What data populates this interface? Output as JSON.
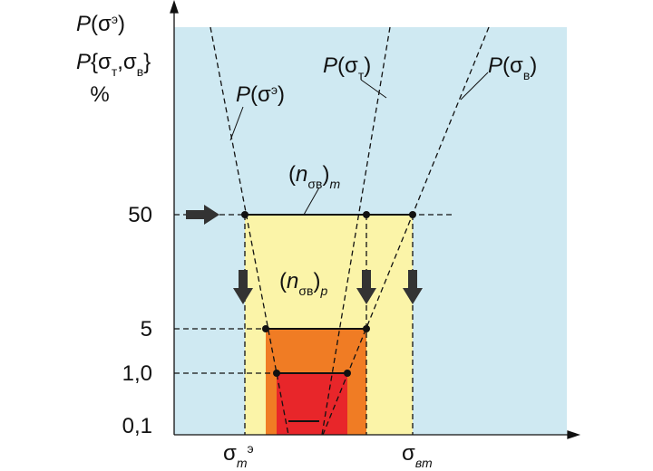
{
  "axis_titles": [
    {
      "parts": [
        {
          "text": "P",
          "style": "italic"
        },
        {
          "text": "(σ",
          "style": "normal"
        },
        {
          "text": "э",
          "style": "super"
        },
        {
          "text": ")",
          "style": "normal"
        }
      ]
    },
    {
      "parts": [
        {
          "text": "P",
          "style": "italic"
        },
        {
          "text": "{σ",
          "style": "normal"
        },
        {
          "text": "т",
          "style": "sub"
        },
        {
          "text": ",σ",
          "style": "normal"
        },
        {
          "text": "в",
          "style": "sub"
        },
        {
          "text": "}",
          "style": "normal"
        }
      ]
    },
    {
      "parts": [
        {
          "text": "%",
          "style": "normal"
        }
      ]
    }
  ],
  "y_levels": [
    "50",
    "5",
    "1,0",
    "0,1"
  ],
  "curve_labels": [
    {
      "parts": [
        {
          "text": "P",
          "style": "italic"
        },
        {
          "text": "(σ",
          "style": "normal"
        },
        {
          "text": "э",
          "style": "super"
        },
        {
          "text": ")",
          "style": "normal"
        }
      ]
    },
    {
      "parts": [
        {
          "text": "P",
          "style": "italic"
        },
        {
          "text": "(σ",
          "style": "normal"
        },
        {
          "text": "т",
          "style": "sub"
        },
        {
          "text": ")",
          "style": "normal"
        }
      ]
    },
    {
      "parts": [
        {
          "text": "P",
          "style": "italic"
        },
        {
          "text": "(σ",
          "style": "normal"
        },
        {
          "text": "в",
          "style": "sub"
        },
        {
          "text": ")",
          "style": "normal"
        }
      ]
    },
    {
      "parts": [
        {
          "text": "(",
          "style": "normal"
        },
        {
          "text": "n",
          "style": "italic"
        },
        {
          "text": "σ",
          "style": "sub"
        },
        {
          "text": "в",
          "style": "sub"
        },
        {
          "text": ")",
          "style": "normal"
        },
        {
          "text": "m",
          "style": "italic-sub"
        }
      ]
    },
    {
      "parts": [
        {
          "text": "(",
          "style": "normal"
        },
        {
          "text": "n",
          "style": "italic"
        },
        {
          "text": "σ",
          "style": "sub"
        },
        {
          "text": "в",
          "style": "sub"
        },
        {
          "text": ")",
          "style": "normal"
        },
        {
          "text": "p",
          "style": "italic-sub"
        }
      ]
    }
  ],
  "x_labels": [
    {
      "parts": [
        {
          "text": "σ",
          "style": "normal"
        },
        {
          "text": "т",
          "style": "italic-sub"
        },
        {
          "text": "э",
          "style": "super"
        }
      ]
    },
    {
      "parts": [
        {
          "text": "σ",
          "style": "normal"
        },
        {
          "text": "вт",
          "style": "italic-sub"
        }
      ]
    }
  ]
}
